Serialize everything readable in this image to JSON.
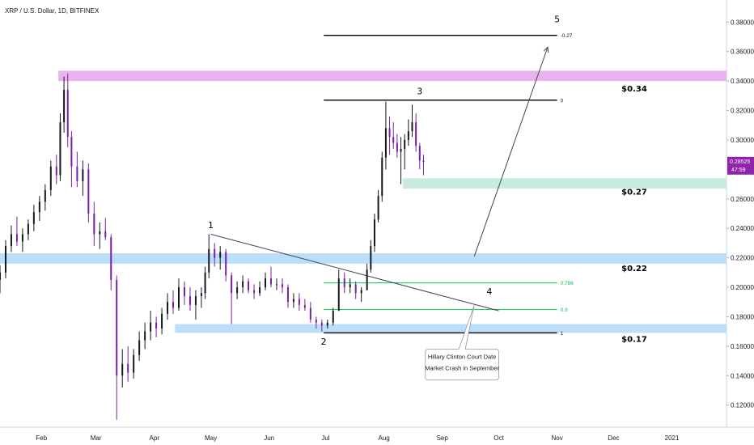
{
  "chart_data": {
    "type": "candlestick",
    "title": "XRP / U.S. Dollar, 1D, BITFINEX",
    "x_ticks": [
      {
        "date": "2020-02-01",
        "label": "Feb"
      },
      {
        "date": "2020-03-01",
        "label": "Mar"
      },
      {
        "date": "2020-04-01",
        "label": "Apr"
      },
      {
        "date": "2020-05-01",
        "label": "May"
      },
      {
        "date": "2020-06-01",
        "label": "Jun"
      },
      {
        "date": "2020-07-01",
        "label": "Jul"
      },
      {
        "date": "2020-08-01",
        "label": "Aug"
      },
      {
        "date": "2020-09-01",
        "label": "Sep"
      },
      {
        "date": "2020-10-01",
        "label": "Oct"
      },
      {
        "date": "2020-11-01",
        "label": "Nov"
      },
      {
        "date": "2020-12-01",
        "label": "Dec"
      },
      {
        "date": "2021-01-01",
        "label": "2021"
      }
    ],
    "y_ticks": [
      "0.12000",
      "0.14000",
      "0.16000",
      "0.18000",
      "0.20000",
      "0.22000",
      "0.24000",
      "0.26000",
      "0.28000",
      "0.30000",
      "0.32000",
      "0.34000",
      "0.36000",
      "0.38000"
    ],
    "ylim": [
      0.105,
      0.395
    ],
    "xlim": [
      "2020-01-10",
      "2021-01-30"
    ],
    "current_price": {
      "value": "0.28525",
      "countdown": "47:59"
    },
    "colors": {
      "up": "#131722",
      "down": "#7b1fa2",
      "pink_zone": "#e9b3f0",
      "blue_zone": "#bbdefb",
      "green_zone": "#c8ecdc",
      "fib_green": "#00c853",
      "price_tag": "#8e24aa"
    },
    "candles": [
      {
        "d": "2020-01-10",
        "o": 0.205,
        "h": 0.215,
        "l": 0.196,
        "c": 0.21
      },
      {
        "d": "2020-01-13",
        "o": 0.21,
        "h": 0.232,
        "l": 0.206,
        "c": 0.228
      },
      {
        "d": "2020-01-16",
        "o": 0.228,
        "h": 0.242,
        "l": 0.224,
        "c": 0.236
      },
      {
        "d": "2020-01-19",
        "o": 0.236,
        "h": 0.248,
        "l": 0.228,
        "c": 0.231
      },
      {
        "d": "2020-01-22",
        "o": 0.231,
        "h": 0.24,
        "l": 0.224,
        "c": 0.236
      },
      {
        "d": "2020-01-25",
        "o": 0.236,
        "h": 0.246,
        "l": 0.232,
        "c": 0.243
      },
      {
        "d": "2020-01-28",
        "o": 0.243,
        "h": 0.256,
        "l": 0.238,
        "c": 0.251
      },
      {
        "d": "2020-01-31",
        "o": 0.251,
        "h": 0.262,
        "l": 0.245,
        "c": 0.258
      },
      {
        "d": "2020-02-03",
        "o": 0.258,
        "h": 0.27,
        "l": 0.252,
        "c": 0.266
      },
      {
        "d": "2020-02-06",
        "o": 0.266,
        "h": 0.286,
        "l": 0.262,
        "c": 0.282
      },
      {
        "d": "2020-02-09",
        "o": 0.282,
        "h": 0.29,
        "l": 0.27,
        "c": 0.276
      },
      {
        "d": "2020-02-11",
        "o": 0.276,
        "h": 0.318,
        "l": 0.272,
        "c": 0.312
      },
      {
        "d": "2020-02-13",
        "o": 0.312,
        "h": 0.343,
        "l": 0.305,
        "c": 0.334
      },
      {
        "d": "2020-02-15",
        "o": 0.334,
        "h": 0.345,
        "l": 0.295,
        "c": 0.302
      },
      {
        "d": "2020-02-17",
        "o": 0.302,
        "h": 0.306,
        "l": 0.268,
        "c": 0.282
      },
      {
        "d": "2020-02-20",
        "o": 0.282,
        "h": 0.292,
        "l": 0.268,
        "c": 0.272
      },
      {
        "d": "2020-02-23",
        "o": 0.272,
        "h": 0.286,
        "l": 0.262,
        "c": 0.28
      },
      {
        "d": "2020-02-26",
        "o": 0.28,
        "h": 0.284,
        "l": 0.244,
        "c": 0.25
      },
      {
        "d": "2020-02-29",
        "o": 0.25,
        "h": 0.258,
        "l": 0.228,
        "c": 0.236
      },
      {
        "d": "2020-03-03",
        "o": 0.236,
        "h": 0.244,
        "l": 0.226,
        "c": 0.238
      },
      {
        "d": "2020-03-06",
        "o": 0.238,
        "h": 0.247,
        "l": 0.232,
        "c": 0.234
      },
      {
        "d": "2020-03-09",
        "o": 0.234,
        "h": 0.236,
        "l": 0.198,
        "c": 0.205
      },
      {
        "d": "2020-03-12",
        "o": 0.205,
        "h": 0.208,
        "l": 0.11,
        "c": 0.14
      },
      {
        "d": "2020-03-15",
        "o": 0.14,
        "h": 0.158,
        "l": 0.132,
        "c": 0.148
      },
      {
        "d": "2020-03-18",
        "o": 0.148,
        "h": 0.16,
        "l": 0.136,
        "c": 0.142
      },
      {
        "d": "2020-03-21",
        "o": 0.142,
        "h": 0.158,
        "l": 0.138,
        "c": 0.154
      },
      {
        "d": "2020-03-24",
        "o": 0.154,
        "h": 0.17,
        "l": 0.15,
        "c": 0.164
      },
      {
        "d": "2020-03-27",
        "o": 0.164,
        "h": 0.176,
        "l": 0.158,
        "c": 0.17
      },
      {
        "d": "2020-03-30",
        "o": 0.17,
        "h": 0.184,
        "l": 0.164,
        "c": 0.176
      },
      {
        "d": "2020-04-02",
        "o": 0.176,
        "h": 0.18,
        "l": 0.166,
        "c": 0.172
      },
      {
        "d": "2020-04-05",
        "o": 0.172,
        "h": 0.186,
        "l": 0.168,
        "c": 0.182
      },
      {
        "d": "2020-04-08",
        "o": 0.182,
        "h": 0.196,
        "l": 0.178,
        "c": 0.19
      },
      {
        "d": "2020-04-11",
        "o": 0.19,
        "h": 0.198,
        "l": 0.182,
        "c": 0.186
      },
      {
        "d": "2020-04-14",
        "o": 0.186,
        "h": 0.206,
        "l": 0.184,
        "c": 0.2
      },
      {
        "d": "2020-04-17",
        "o": 0.2,
        "h": 0.204,
        "l": 0.188,
        "c": 0.194
      },
      {
        "d": "2020-04-20",
        "o": 0.194,
        "h": 0.2,
        "l": 0.184,
        "c": 0.188
      },
      {
        "d": "2020-04-23",
        "o": 0.188,
        "h": 0.198,
        "l": 0.178,
        "c": 0.194
      },
      {
        "d": "2020-04-26",
        "o": 0.194,
        "h": 0.2,
        "l": 0.186,
        "c": 0.196
      },
      {
        "d": "2020-04-28",
        "o": 0.196,
        "h": 0.214,
        "l": 0.192,
        "c": 0.21
      },
      {
        "d": "2020-04-30",
        "o": 0.21,
        "h": 0.236,
        "l": 0.206,
        "c": 0.226
      },
      {
        "d": "2020-05-03",
        "o": 0.226,
        "h": 0.23,
        "l": 0.214,
        "c": 0.22
      },
      {
        "d": "2020-05-06",
        "o": 0.22,
        "h": 0.228,
        "l": 0.212,
        "c": 0.224
      },
      {
        "d": "2020-05-09",
        "o": 0.224,
        "h": 0.226,
        "l": 0.204,
        "c": 0.208
      },
      {
        "d": "2020-05-12",
        "o": 0.208,
        "h": 0.21,
        "l": 0.175,
        "c": 0.196
      },
      {
        "d": "2020-05-15",
        "o": 0.196,
        "h": 0.204,
        "l": 0.192,
        "c": 0.2
      },
      {
        "d": "2020-05-18",
        "o": 0.2,
        "h": 0.208,
        "l": 0.196,
        "c": 0.204
      },
      {
        "d": "2020-05-21",
        "o": 0.204,
        "h": 0.206,
        "l": 0.196,
        "c": 0.198
      },
      {
        "d": "2020-05-24",
        "o": 0.198,
        "h": 0.202,
        "l": 0.192,
        "c": 0.196
      },
      {
        "d": "2020-05-27",
        "o": 0.196,
        "h": 0.204,
        "l": 0.194,
        "c": 0.2
      },
      {
        "d": "2020-05-30",
        "o": 0.2,
        "h": 0.21,
        "l": 0.198,
        "c": 0.206
      },
      {
        "d": "2020-06-02",
        "o": 0.206,
        "h": 0.214,
        "l": 0.2,
        "c": 0.202
      },
      {
        "d": "2020-06-05",
        "o": 0.202,
        "h": 0.206,
        "l": 0.198,
        "c": 0.202
      },
      {
        "d": "2020-06-08",
        "o": 0.202,
        "h": 0.206,
        "l": 0.196,
        "c": 0.2
      },
      {
        "d": "2020-06-11",
        "o": 0.2,
        "h": 0.202,
        "l": 0.186,
        "c": 0.19
      },
      {
        "d": "2020-06-14",
        "o": 0.19,
        "h": 0.196,
        "l": 0.186,
        "c": 0.192
      },
      {
        "d": "2020-06-17",
        "o": 0.192,
        "h": 0.196,
        "l": 0.184,
        "c": 0.188
      },
      {
        "d": "2020-06-20",
        "o": 0.188,
        "h": 0.192,
        "l": 0.184,
        "c": 0.186
      },
      {
        "d": "2020-06-23",
        "o": 0.186,
        "h": 0.19,
        "l": 0.176,
        "c": 0.178
      },
      {
        "d": "2020-06-26",
        "o": 0.178,
        "h": 0.18,
        "l": 0.172,
        "c": 0.176
      },
      {
        "d": "2020-06-29",
        "o": 0.176,
        "h": 0.178,
        "l": 0.17,
        "c": 0.174
      },
      {
        "d": "2020-07-02",
        "o": 0.174,
        "h": 0.178,
        "l": 0.172,
        "c": 0.176
      },
      {
        "d": "2020-07-05",
        "o": 0.176,
        "h": 0.186,
        "l": 0.174,
        "c": 0.184
      },
      {
        "d": "2020-07-08",
        "o": 0.184,
        "h": 0.212,
        "l": 0.184,
        "c": 0.206
      },
      {
        "d": "2020-07-11",
        "o": 0.206,
        "h": 0.21,
        "l": 0.196,
        "c": 0.2
      },
      {
        "d": "2020-07-14",
        "o": 0.2,
        "h": 0.206,
        "l": 0.196,
        "c": 0.202
      },
      {
        "d": "2020-07-17",
        "o": 0.202,
        "h": 0.204,
        "l": 0.192,
        "c": 0.196
      },
      {
        "d": "2020-07-20",
        "o": 0.196,
        "h": 0.2,
        "l": 0.19,
        "c": 0.198
      },
      {
        "d": "2020-07-23",
        "o": 0.198,
        "h": 0.216,
        "l": 0.198,
        "c": 0.212
      },
      {
        "d": "2020-07-25",
        "o": 0.212,
        "h": 0.232,
        "l": 0.21,
        "c": 0.228
      },
      {
        "d": "2020-07-27",
        "o": 0.228,
        "h": 0.25,
        "l": 0.224,
        "c": 0.246
      },
      {
        "d": "2020-07-29",
        "o": 0.246,
        "h": 0.266,
        "l": 0.244,
        "c": 0.262
      },
      {
        "d": "2020-07-31",
        "o": 0.262,
        "h": 0.292,
        "l": 0.258,
        "c": 0.288
      },
      {
        "d": "2020-08-02",
        "o": 0.288,
        "h": 0.326,
        "l": 0.28,
        "c": 0.308
      },
      {
        "d": "2020-08-04",
        "o": 0.308,
        "h": 0.316,
        "l": 0.29,
        "c": 0.302
      },
      {
        "d": "2020-08-06",
        "o": 0.302,
        "h": 0.312,
        "l": 0.294,
        "c": 0.298
      },
      {
        "d": "2020-08-08",
        "o": 0.298,
        "h": 0.304,
        "l": 0.288,
        "c": 0.292
      },
      {
        "d": "2020-08-10",
        "o": 0.292,
        "h": 0.302,
        "l": 0.27,
        "c": 0.294
      },
      {
        "d": "2020-08-12",
        "o": 0.294,
        "h": 0.304,
        "l": 0.28,
        "c": 0.3
      },
      {
        "d": "2020-08-14",
        "o": 0.3,
        "h": 0.314,
        "l": 0.296,
        "c": 0.306
      },
      {
        "d": "2020-08-16",
        "o": 0.306,
        "h": 0.324,
        "l": 0.302,
        "c": 0.312
      },
      {
        "d": "2020-08-18",
        "o": 0.312,
        "h": 0.318,
        "l": 0.292,
        "c": 0.296
      },
      {
        "d": "2020-08-20",
        "o": 0.296,
        "h": 0.298,
        "l": 0.28,
        "c": 0.286
      },
      {
        "d": "2020-08-22",
        "o": 0.286,
        "h": 0.29,
        "l": 0.276,
        "c": 0.285
      }
    ],
    "zones": [
      {
        "from": "2020-02-10",
        "to": "2021-01-30",
        "y1": 0.34,
        "y2": 0.347,
        "color": "pink_zone"
      },
      {
        "from": "2020-01-10",
        "to": "2021-01-30",
        "y1": 0.216,
        "y2": 0.223,
        "color": "blue_zone"
      },
      {
        "from": "2020-04-12",
        "to": "2021-01-30",
        "y1": 0.169,
        "y2": 0.175,
        "color": "blue_zone"
      },
      {
        "from": "2020-08-11",
        "to": "2021-01-30",
        "y1": 0.267,
        "y2": 0.274,
        "color": "green_zone"
      }
    ],
    "fib_levels": [
      {
        "level": "-0.27",
        "value": 0.371,
        "color": "#000000"
      },
      {
        "level": "0",
        "value": 0.327,
        "color": "#000000"
      },
      {
        "level": "0.786",
        "value": 0.203,
        "color": "#00c853"
      },
      {
        "level": "0.9",
        "value": 0.185,
        "color": "#00c853"
      },
      {
        "level": "1",
        "value": 0.169,
        "color": "#000000"
      }
    ],
    "fib_range": {
      "from": "2020-06-30",
      "to": "2020-11-01"
    },
    "trendline": {
      "p1": {
        "d": "2020-05-01",
        "v": 0.236
      },
      "p2": {
        "d": "2020-10-01",
        "v": 0.184
      }
    },
    "projection_arrow": {
      "p1": {
        "d": "2020-09-18",
        "v": 0.221
      },
      "p2": {
        "d": "2020-10-27",
        "v": 0.363
      }
    },
    "wave_labels": [
      {
        "label": "1",
        "d": "2020-05-01",
        "v": 0.24
      },
      {
        "label": "2",
        "d": "2020-06-30",
        "v": 0.161
      },
      {
        "label": "3",
        "d": "2020-08-20",
        "v": 0.331
      },
      {
        "label": "4",
        "d": "2020-09-26",
        "v": 0.195
      },
      {
        "label": "5",
        "d": "2020-11-01",
        "v": 0.38
      }
    ],
    "zone_labels": [
      {
        "label": "$0.34",
        "d": "2020-12-12",
        "v": 0.333
      },
      {
        "label": "$0.27",
        "d": "2020-12-12",
        "v": 0.263
      },
      {
        "label": "$0.22",
        "d": "2020-12-12",
        "v": 0.211
      },
      {
        "label": "$0.17",
        "d": "2020-12-12",
        "v": 0.163
      }
    ],
    "callout": {
      "lines": [
        "Hillary Clinton Court Date",
        "Market Crash in September"
      ],
      "pointer": {
        "d": "2020-09-18",
        "v": 0.188
      },
      "box": {
        "from": "2020-08-23",
        "to": "2020-10-01",
        "v_top": 0.158,
        "v_bottom": 0.137
      }
    }
  }
}
